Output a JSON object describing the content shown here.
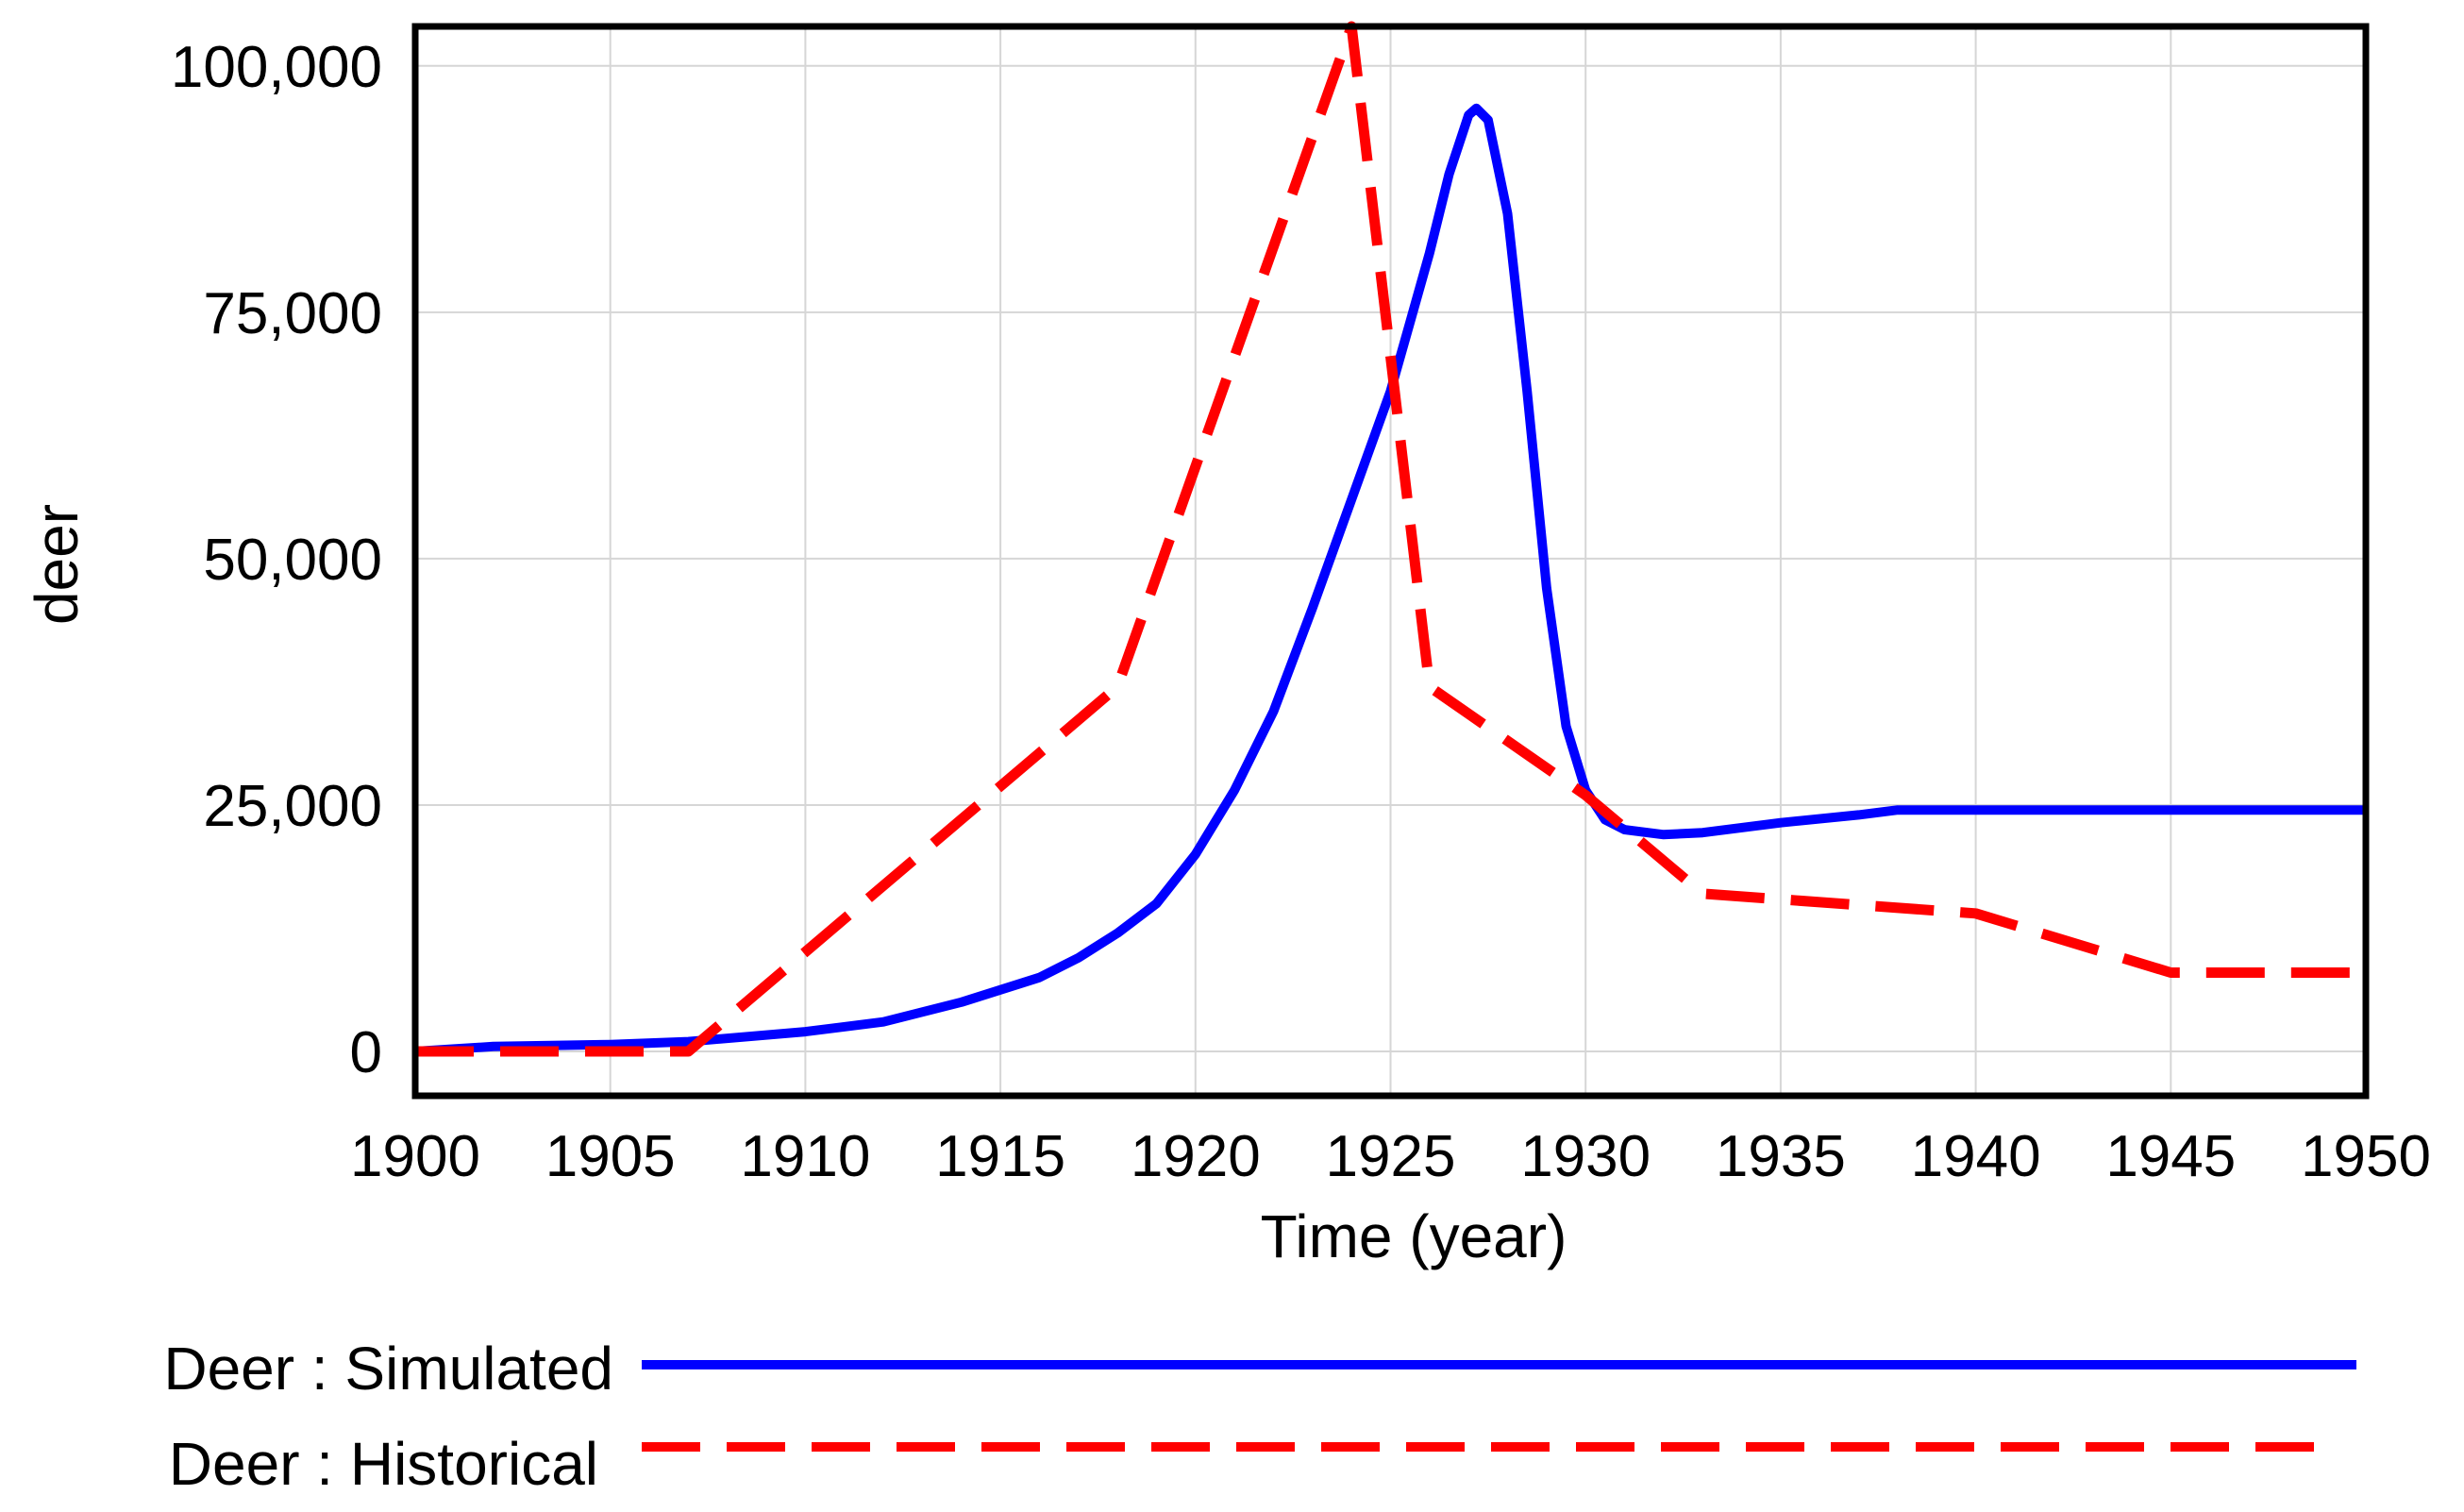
{
  "chart_data": {
    "type": "line",
    "title": "",
    "xlabel": "Time (year)",
    "ylabel": "deer",
    "xlim": [
      1900,
      1950
    ],
    "ylim": [
      -4500,
      104000
    ],
    "grid": true,
    "legend_placement": "bottom",
    "x_ticks": [
      "1900",
      "1905",
      "1910",
      "1915",
      "1920",
      "1925",
      "1930",
      "1935",
      "1940",
      "1945",
      "1950"
    ],
    "y_ticks": [
      "0",
      "25,000",
      "50,000",
      "75,000",
      "100,000"
    ],
    "series": [
      {
        "name": "Deer : Simulated",
        "color": "#0000ff",
        "style": "solid",
        "x": [
          1900,
          1902,
          1905,
          1907,
          1910,
          1912,
          1914,
          1916,
          1917,
          1918,
          1919,
          1920,
          1921,
          1922,
          1923,
          1924,
          1925,
          1925.5,
          1926,
          1926.5,
          1927,
          1927.2,
          1927.5,
          1928,
          1928.5,
          1929,
          1929.5,
          1930,
          1930.5,
          1931,
          1932,
          1933,
          1935,
          1937,
          1938,
          1940,
          1945,
          1950
        ],
        "y": [
          0,
          500,
          700,
          1000,
          2000,
          3000,
          5000,
          7500,
          9500,
          12000,
          15000,
          20000,
          26500,
          34500,
          45000,
          56000,
          67000,
          74000,
          81000,
          89000,
          95000,
          95700,
          94500,
          85000,
          67000,
          47000,
          33000,
          26500,
          23500,
          22500,
          22000,
          22200,
          23200,
          24000,
          24500,
          24500,
          24500,
          24500
        ]
      },
      {
        "name": "Deer : Historical",
        "color": "#ff0000",
        "style": "dashed",
        "x": [
          1900,
          1907,
          1918,
          1924,
          1926,
          1930,
          1933,
          1940,
          1945,
          1950
        ],
        "y": [
          0,
          0,
          37000,
          104000,
          37000,
          26000,
          16000,
          14000,
          8000,
          8000
        ]
      }
    ]
  }
}
